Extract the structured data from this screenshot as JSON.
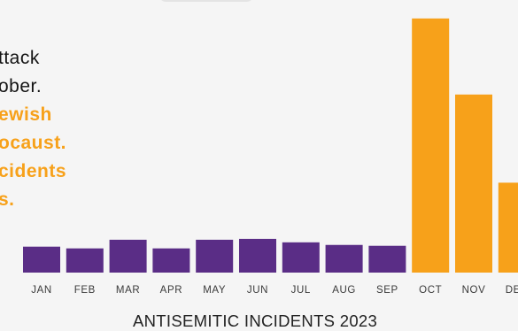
{
  "text_block": {
    "lines": [
      {
        "text": "ttack",
        "style": "plain"
      },
      {
        "text": "ober.",
        "style": "plain"
      },
      {
        "text": "ewish",
        "style": "accent"
      },
      {
        "text": "ocaust.",
        "style": "accent"
      },
      {
        "text": "cidents",
        "style": "accent"
      },
      {
        "text": "s.",
        "style": "accent"
      }
    ]
  },
  "colors": {
    "background": "#f5f5f5",
    "bar_before": "#5a2d86",
    "bar_after": "#f7a11a",
    "accent_text": "#f7a11a",
    "body_text": "#141414"
  },
  "chart_data": {
    "type": "bar",
    "title": "ANTISEMITIC INCIDENTS 2023",
    "xlabel": "",
    "ylabel": "",
    "categories": [
      "JAN",
      "FEB",
      "MAR",
      "APR",
      "MAY",
      "JUN",
      "JUL",
      "AUG",
      "SEP",
      "OCT",
      "NOV",
      "DEC"
    ],
    "values": [
      30,
      28,
      38,
      28,
      38,
      39,
      35,
      32,
      31,
      294,
      206,
      104
    ],
    "highlight_from_index": 9,
    "ylim": [
      0,
      300
    ],
    "grid": false,
    "legend": "none"
  }
}
